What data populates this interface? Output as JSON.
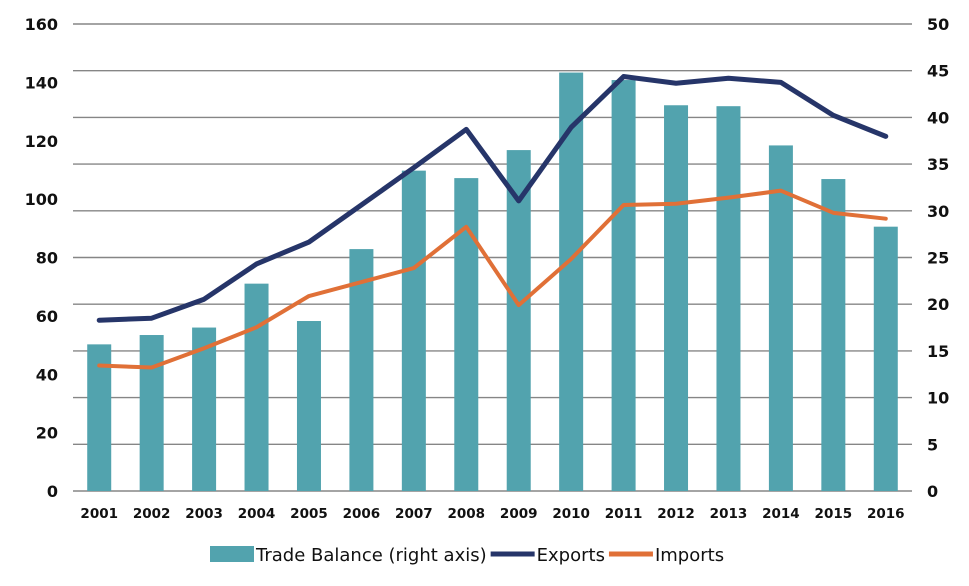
{
  "chart_data": {
    "type": "bar+line",
    "categories": [
      "2001",
      "2002",
      "2003",
      "2004",
      "2005",
      "2006",
      "2007",
      "2008",
      "2009",
      "2010",
      "2011",
      "2012",
      "2013",
      "2014",
      "2015",
      "2016"
    ],
    "left_axis": {
      "ylim": [
        0,
        160
      ],
      "ticks": [
        0,
        20,
        40,
        60,
        80,
        100,
        120,
        140,
        160
      ]
    },
    "right_axis": {
      "ylim": [
        0,
        50
      ],
      "ticks": [
        0,
        5,
        10,
        15,
        20,
        25,
        30,
        35,
        40,
        45,
        50
      ]
    },
    "grid": true,
    "legend_position": "bottom",
    "series": [
      {
        "name": "Trade Balance (right axis)",
        "kind": "bar",
        "axis": "right",
        "color": "#52a3ae",
        "values": [
          15.7,
          16.7,
          17.5,
          22.2,
          18.2,
          25.9,
          34.3,
          33.5,
          36.5,
          44.8,
          44.0,
          41.3,
          41.2,
          37.0,
          33.4,
          28.3
        ]
      },
      {
        "name": "Exports",
        "kind": "line",
        "axis": "left",
        "color": "#263569",
        "values": [
          58.5,
          59.2,
          65.7,
          77.8,
          85.3,
          98.0,
          110.8,
          123.9,
          99.4,
          124.6,
          142.0,
          139.7,
          141.4,
          140.0,
          128.7,
          121.5
        ]
      },
      {
        "name": "Imports",
        "kind": "line",
        "axis": "left",
        "color": "#e07037",
        "values": [
          43.0,
          42.3,
          48.9,
          56.1,
          66.8,
          71.6,
          76.4,
          90.5,
          63.7,
          79.5,
          98.0,
          98.4,
          100.5,
          102.9,
          95.3,
          93.3
        ]
      }
    ]
  }
}
